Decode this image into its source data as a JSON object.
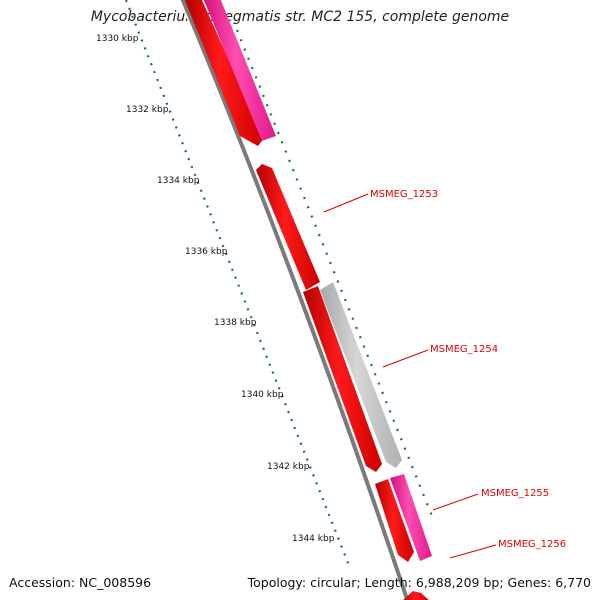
{
  "title": "Mycobacterium smegmatis str. MC2 155, complete genome",
  "footer": {
    "accession": "Accession: NC_008596",
    "summary": "Topology: circular; Length: 6,988,209 bp; Genes: 6,770"
  },
  "scale_labels": [
    "1330 kbp",
    "1332 kbp",
    "1334 kbp",
    "1336 kbp",
    "1338 kbp",
    "1340 kbp",
    "1342 kbp",
    "1344 kbp"
  ],
  "gene_labels": [
    "MSMEG_1253",
    "MSMEG_1254",
    "MSMEG_1255",
    "MSMEG_1256"
  ],
  "colors": {
    "cds_forward": "#ff0000",
    "cds_reverse": "#ff1493",
    "cds_other": "#c0c0c0",
    "backbone": "#808080",
    "scale": "#1a7a1a",
    "label": "#e00000"
  }
}
